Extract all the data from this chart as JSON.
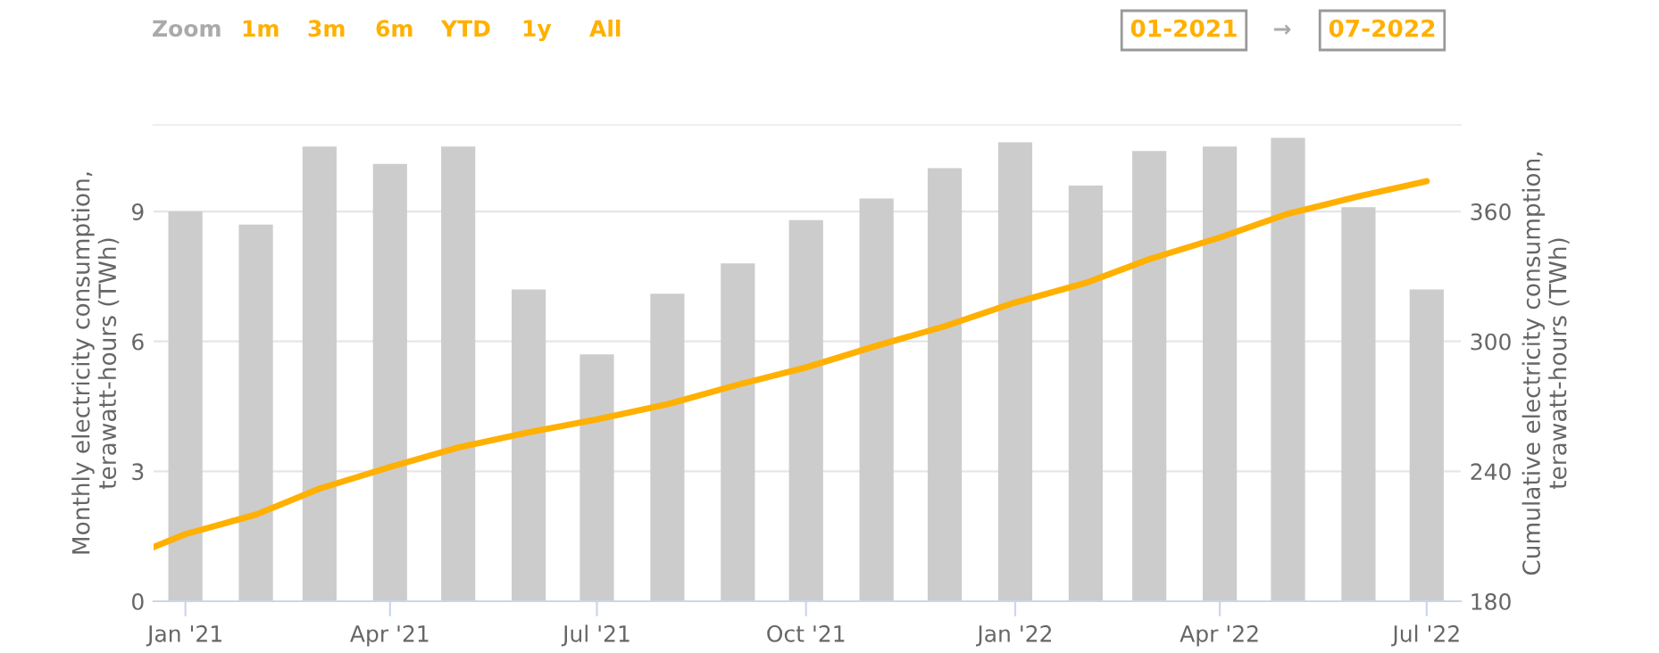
{
  "chart_data": {
    "type": "bar",
    "xlabel": null,
    "ylabel": "Monthly electricity consumption,\nterawatt-hours (TWh)",
    "y2label": "Cumulative electricity consumption,\nterawatt-hours (TWh)",
    "x": [
      "2021-01",
      "2021-02",
      "2021-03",
      "2021-04",
      "2021-05",
      "2021-06",
      "2021-07",
      "2021-08",
      "2021-09",
      "2021-10",
      "2021-11",
      "2021-12",
      "2022-01",
      "2022-02",
      "2022-03",
      "2022-04",
      "2022-05",
      "2022-06",
      "2022-07"
    ],
    "series": [
      {
        "color": "#cccccc",
        "values": [
          9.0,
          8.7,
          10.5,
          10.1,
          10.5,
          7.2,
          5.7,
          7.1,
          7.8,
          8.8,
          9.3,
          10.0,
          10.6,
          9.6,
          10.4,
          10.5,
          10.7,
          9.1,
          7.2
        ]
      },
      {
        "type": "line",
        "axis": "y2",
        "color": "#ffb000",
        "x": [
          "2020-12-18",
          "2021-01",
          "2021-02",
          "2021-03",
          "2021-04",
          "2021-05",
          "2021-06",
          "2021-07",
          "2021-08",
          "2021-09",
          "2021-10",
          "2021-11",
          "2021-12",
          "2022-01",
          "2022-02",
          "2022-03",
          "2022-04",
          "2022-05",
          "2022-06",
          "2022-07"
        ],
        "values": [
          205,
          211,
          220,
          232,
          242,
          251,
          258,
          264,
          271,
          280,
          288,
          298,
          307,
          318,
          327,
          338,
          348,
          359,
          367,
          374
        ]
      }
    ],
    "xlim": [
      "2020-12-18",
      "2022-07-16"
    ],
    "xticks": [
      {
        "value": "2021-01",
        "label": "Jan '21"
      },
      {
        "value": "2021-04",
        "label": "Apr '21"
      },
      {
        "value": "2021-07",
        "label": "Jul '21"
      },
      {
        "value": "2021-10",
        "label": "Oct '21"
      },
      {
        "value": "2022-01",
        "label": "Jan '22"
      },
      {
        "value": "2022-04",
        "label": "Apr '22"
      },
      {
        "value": "2022-07",
        "label": "Jul '22"
      }
    ],
    "ylim": [
      0,
      11
    ],
    "yticks": [
      0,
      3,
      6,
      9
    ],
    "y2lim": [
      180,
      400
    ],
    "y2ticks": [
      180,
      240,
      300,
      360
    ],
    "grid": "y",
    "legend": false,
    "marker": "none",
    "line_style": "solid",
    "annotations": [
      "Zoom",
      "1m",
      "3m",
      "6m",
      "YTD",
      "1y",
      "All",
      "01-2021",
      "→",
      "07-2022"
    ]
  }
}
